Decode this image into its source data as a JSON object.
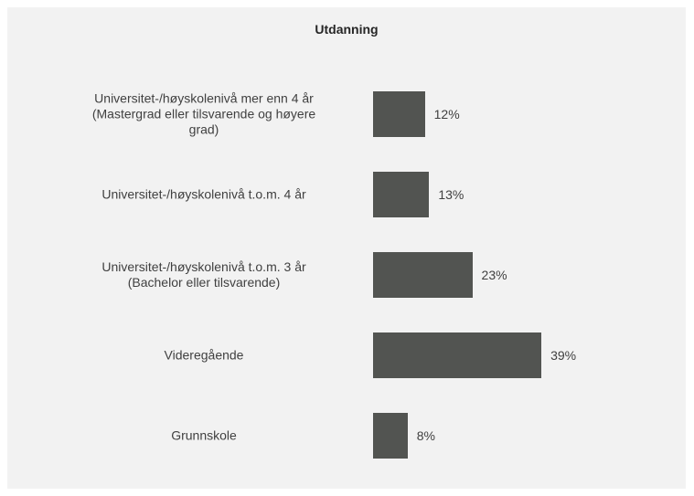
{
  "chart_data": {
    "type": "bar",
    "orientation": "horizontal",
    "title": "Utdanning",
    "categories": [
      "Universitet-/høyskolenivå mer enn 4 år\n(Mastergrad eller tilsvarende og høyere\ngrad)",
      "Universitet-/høyskolenivå t.o.m. 4 år",
      "Universitet-/høyskolenivå t.o.m. 3 år\n(Bachelor eller tilsvarende)",
      "Videregående",
      "Grunnskole"
    ],
    "values": [
      12,
      13,
      23,
      39,
      8
    ],
    "value_labels": [
      "12%",
      "13%",
      "23%",
      "39%",
      "8%"
    ],
    "color": "#525451"
  }
}
